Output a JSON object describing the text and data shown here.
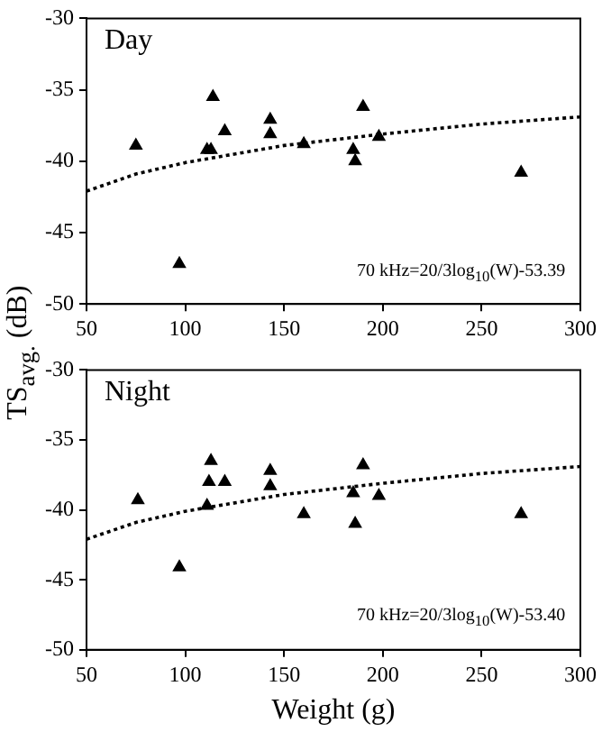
{
  "chart_data": [
    {
      "type": "scatter",
      "ylabel": "TS$_{avg.}$ (dB)",
      "annotations": [
        "Day",
        "70 kHz=20/3log$_{10}$(W)-53.39"
      ],
      "xlim": [
        50,
        300
      ],
      "xticks": [
        50,
        100,
        150,
        200,
        250,
        300
      ],
      "ylim": [
        -50,
        -30
      ],
      "yticks": [
        -50,
        -45,
        -40,
        -35,
        -30
      ],
      "grid": false,
      "legend": false,
      "marker": "triangle",
      "series": [
        {
          "color": "#000000",
          "x": [
            75,
            97,
            111,
            113,
            114,
            120,
            143,
            143,
            160,
            185,
            186,
            190,
            198,
            270
          ],
          "values": [
            -38.9,
            -47.2,
            -39.2,
            -39.2,
            -35.5,
            -37.9,
            -37.1,
            -38.1,
            -38.8,
            -39.2,
            -40.0,
            -36.2,
            -38.3,
            -40.8
          ]
        },
        {
          "type": "line",
          "line_style": "dotted",
          "marker": "none",
          "color": "#000000",
          "x": [
            50,
            75,
            100,
            150,
            200,
            250,
            300
          ],
          "values": [
            -42.1,
            -40.9,
            -40.1,
            -38.9,
            -38.1,
            -37.4,
            -36.9
          ]
        }
      ]
    },
    {
      "type": "scatter",
      "xlabel": "Weight (g)",
      "annotations": [
        "Night",
        "70 kHz=20/3log$_{10}$(W)-53.40"
      ],
      "xlim": [
        50,
        300
      ],
      "xticks": [
        50,
        100,
        150,
        200,
        250,
        300
      ],
      "ylim": [
        -50,
        -30
      ],
      "yticks": [
        -50,
        -45,
        -40,
        -35,
        -30
      ],
      "grid": false,
      "legend": false,
      "marker": "triangle",
      "series": [
        {
          "color": "#000000",
          "x": [
            76,
            97,
            111,
            112,
            113,
            120,
            143,
            143,
            160,
            185,
            186,
            190,
            198,
            270
          ],
          "values": [
            -39.3,
            -44.1,
            -39.7,
            -38.0,
            -36.5,
            -38.0,
            -37.2,
            -38.3,
            -40.3,
            -38.8,
            -41.0,
            -36.8,
            -39.0,
            -40.3
          ]
        },
        {
          "type": "line",
          "line_style": "dotted",
          "marker": "none",
          "color": "#000000",
          "x": [
            50,
            75,
            100,
            150,
            200,
            250,
            300
          ],
          "values": [
            -42.1,
            -40.9,
            -40.1,
            -38.9,
            -38.1,
            -37.4,
            -36.9
          ]
        }
      ]
    }
  ]
}
